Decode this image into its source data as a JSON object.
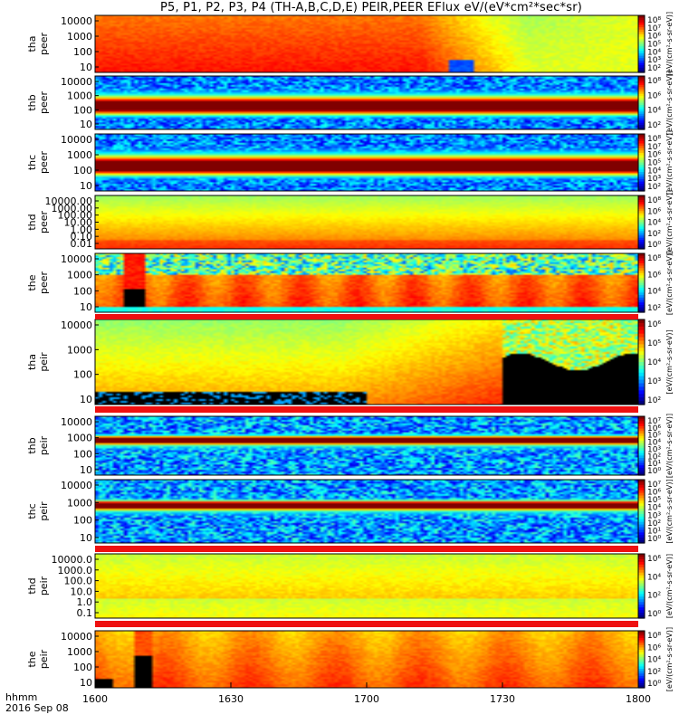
{
  "title": "P5, P1, P2, P3, P4 (TH-A,B,C,D,E) PEIR,PEER EFlux eV/(eV*cm²*sec*sr)",
  "footer": {
    "time_label": "hhmm",
    "date_label": "2016 Sep 08"
  },
  "colors": {
    "red": "#ee1010",
    "black": "#000000",
    "frame": "#000000"
  },
  "chart_data": {
    "type": "heatmap",
    "x_ticks": [
      "1600",
      "1630",
      "1700",
      "1730",
      "1800"
    ],
    "x_range": [
      "1600",
      "1800"
    ],
    "panels": [
      {
        "probe": "tha",
        "species": "peer",
        "label1": "tha",
        "label2": "peer",
        "y_ticks": [
          "10000",
          "1000",
          "100",
          "10"
        ],
        "cbar_ticks": [
          "10⁸",
          "10⁷",
          "10⁶",
          "10⁵",
          "10⁴",
          "10³",
          "10²"
        ],
        "cbar_label": "[eV/(cm²-s-sr-eV)]",
        "style": "tha-peer"
      },
      {
        "probe": "thb",
        "species": "peer",
        "label1": "thb",
        "label2": "peer",
        "y_ticks": [
          "10000",
          "1000",
          "100",
          "10"
        ],
        "cbar_ticks": [
          "10⁸",
          "10⁶",
          "10⁴",
          "10²"
        ],
        "cbar_label": "[eV/(cm²-s-sr-eV)]",
        "style": "band"
      },
      {
        "probe": "thc",
        "species": "peer",
        "label1": "thc",
        "label2": "peer",
        "y_ticks": [
          "10000",
          "1000",
          "100",
          "10"
        ],
        "cbar_ticks": [
          "10⁸",
          "10⁷",
          "10⁶",
          "10⁵",
          "10⁴",
          "10³",
          "10²"
        ],
        "cbar_label": "[eV/(cm²-s-sr-eV)]",
        "style": "band"
      },
      {
        "probe": "thd",
        "species": "peer",
        "label1": "thd",
        "label2": "peer",
        "y_ticks": [
          "10000.00",
          "1000.00",
          "100.00",
          "10.00",
          "1.00",
          "0.10",
          "0.01"
        ],
        "cbar_ticks": [
          "10⁸",
          "10⁶",
          "10⁴",
          "10²",
          "10⁰"
        ],
        "cbar_label": "[eV/(cm²-s-sr-eV)]",
        "style": "flat"
      },
      {
        "probe": "the",
        "species": "peer",
        "label1": "the",
        "label2": "peer",
        "y_ticks": [
          "10000",
          "1000",
          "100",
          "10"
        ],
        "cbar_ticks": [
          "10⁸",
          "10⁶",
          "10⁴",
          "10²"
        ],
        "cbar_label": "[eV/(cm²-s-sr-eV)]",
        "style": "the-peer"
      },
      {
        "probe": "tha",
        "species": "peir",
        "label1": "tha",
        "label2": "peir",
        "y_ticks": [
          "10000",
          "1000",
          "100",
          "10"
        ],
        "cbar_ticks": [
          "10⁶",
          "10⁵",
          "10⁴",
          "10³",
          "10²"
        ],
        "cbar_label": "[eV/(cm²-s-sr-eV)]",
        "style": "tha-peir"
      },
      {
        "probe": "thb",
        "species": "peir",
        "label1": "thb",
        "label2": "peir",
        "y_ticks": [
          "10000",
          "1000",
          "100",
          "10"
        ],
        "cbar_ticks": [
          "10⁷",
          "10⁶",
          "10⁵",
          "10⁴",
          "10³",
          "10²",
          "10¹",
          "10⁰"
        ],
        "cbar_label": "[eV/(cm²-s-sr-eV)]",
        "style": "ion-band"
      },
      {
        "probe": "thc",
        "species": "peir",
        "label1": "thc",
        "label2": "peir",
        "y_ticks": [
          "10000",
          "1000",
          "100",
          "10"
        ],
        "cbar_ticks": [
          "10⁷",
          "10⁶",
          "10⁵",
          "10⁴",
          "10³",
          "10²",
          "10¹",
          "10⁰"
        ],
        "cbar_label": "[eV/(cm²-s-sr-eV)]",
        "style": "ion-band"
      },
      {
        "probe": "thd",
        "species": "peir",
        "label1": "thd",
        "label2": "peir",
        "y_ticks": [
          "10000.0",
          "1000.0",
          "100.0",
          "10.0",
          "1.0",
          "0.1"
        ],
        "cbar_ticks": [
          "10⁶",
          "10⁴",
          "10²",
          "10⁰"
        ],
        "cbar_label": "[eV/(cm²-s-sr-eV)]",
        "style": "ion-flat"
      },
      {
        "probe": "the",
        "species": "peir",
        "label1": "the",
        "label2": "peir",
        "y_ticks": [
          "10000",
          "1000",
          "100",
          "10"
        ],
        "cbar_ticks": [
          "10⁸",
          "10⁶",
          "10⁴",
          "10²",
          "10⁰"
        ],
        "cbar_label": "[eV/(cm²-s-sr-eV)]",
        "style": "the-peir"
      }
    ],
    "colorbar_axis_label": "[eV/(cm²-s-sr-eV)]"
  }
}
